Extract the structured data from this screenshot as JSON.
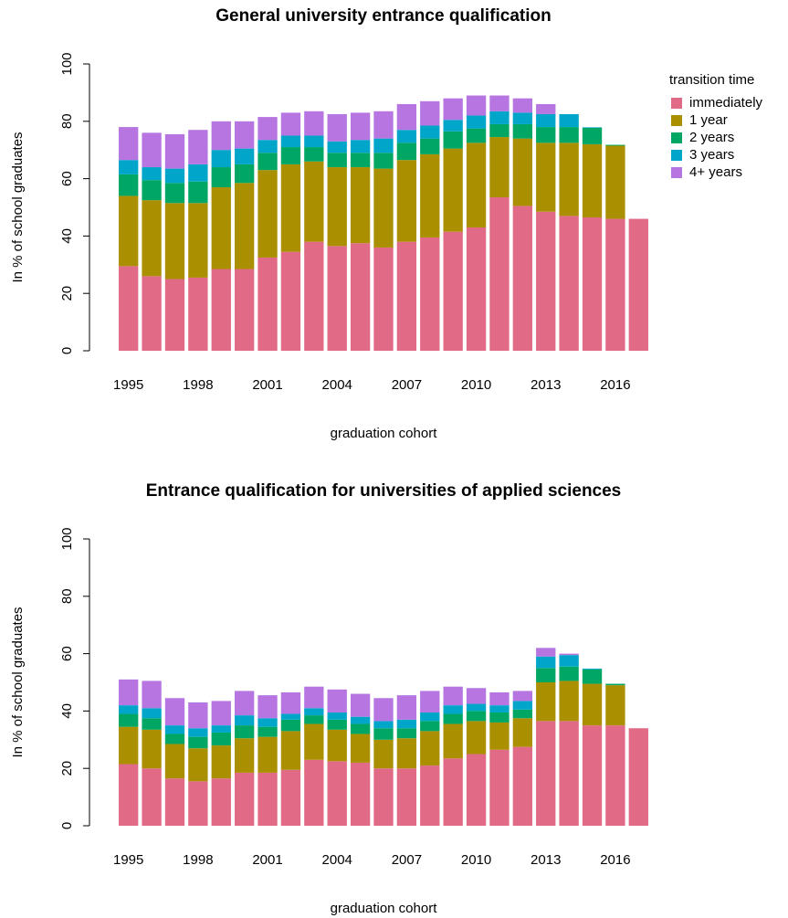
{
  "chart_data": [
    {
      "type": "bar",
      "stacked": true,
      "title": "General university entrance qualification",
      "xlabel": "graduation cohort",
      "ylabel": "In % of school graduates",
      "categories": [
        "1995",
        null,
        null,
        "1998",
        null,
        null,
        "2001",
        null,
        null,
        "2004",
        null,
        null,
        "2007",
        null,
        null,
        "2010",
        null,
        null,
        "2013",
        null,
        null,
        "2016",
        null
      ],
      "series": [
        {
          "name": "immediately",
          "color": "#e16a86",
          "values": [
            29.5,
            26,
            25,
            25.5,
            28.5,
            28.5,
            32.5,
            34.5,
            38,
            36.5,
            37.5,
            36,
            38,
            39.5,
            41.5,
            43,
            53.5,
            50.5,
            48.5,
            47,
            46.5,
            46,
            46
          ]
        },
        {
          "name": "1 year",
          "color": "#aa9000",
          "values": [
            24.5,
            26.5,
            26.5,
            26,
            28.5,
            30,
            30.5,
            30.5,
            28,
            27.5,
            26.5,
            27.5,
            28.5,
            29,
            29,
            29.5,
            21,
            23.5,
            24,
            25.5,
            25.5,
            25.5,
            null
          ]
        },
        {
          "name": "2 years",
          "color": "#00a664",
          "values": [
            7.5,
            7,
            7,
            7.5,
            7,
            6.5,
            6,
            6,
            5,
            5,
            5,
            5.5,
            6,
            5.5,
            6,
            5,
            4.5,
            5,
            5.5,
            5.5,
            5.7,
            0.3,
            null
          ]
        },
        {
          "name": "3 years",
          "color": "#00a6ca",
          "values": [
            5,
            4.5,
            5,
            6,
            6,
            5.5,
            4.5,
            4,
            4,
            4,
            4.5,
            5,
            4.5,
            4.5,
            4,
            4.5,
            4.5,
            4,
            4.5,
            4.5,
            0.2,
            null,
            null
          ]
        },
        {
          "name": "4+ years",
          "color": "#b675e0",
          "values": [
            11.5,
            12,
            12,
            12,
            10,
            9.5,
            8,
            8,
            8.5,
            9.5,
            9.5,
            9.5,
            9,
            8.5,
            7.5,
            7,
            5.5,
            5,
            3.5,
            null,
            null,
            null,
            null
          ]
        }
      ],
      "ylim": [
        0,
        100
      ],
      "yticks": [
        0,
        20,
        40,
        60,
        80,
        100
      ],
      "legend": "right",
      "legend_title": "transition time"
    },
    {
      "type": "bar",
      "stacked": true,
      "title": "Entrance qualification for universities of applied sciences",
      "xlabel": "graduation cohort",
      "ylabel": "In % of school graduates",
      "categories": [
        "1995",
        null,
        null,
        "1998",
        null,
        null,
        "2001",
        null,
        null,
        "2004",
        null,
        null,
        "2007",
        null,
        null,
        "2010",
        null,
        null,
        "2013",
        null,
        null,
        "2016",
        null
      ],
      "series": [
        {
          "color": "#e16a86",
          "values": [
            21.5,
            20,
            16.5,
            15.5,
            16.5,
            18.5,
            18.5,
            19.5,
            23,
            22.5,
            22,
            20,
            20,
            21,
            23.5,
            25,
            26.5,
            27.5,
            36.5,
            36.5,
            35,
            35,
            34
          ]
        },
        {
          "color": "#aa9000",
          "values": [
            13,
            13.5,
            12,
            11.5,
            11.5,
            12,
            12.5,
            13.5,
            12.5,
            11,
            10,
            10,
            10.5,
            12,
            12,
            11.5,
            9.5,
            10,
            13.5,
            14,
            14.5,
            14,
            null
          ]
        },
        {
          "color": "#00a664",
          "values": [
            4.5,
            4,
            3.5,
            4,
            4.5,
            4.5,
            3.5,
            4,
            3,
            3.5,
            3.5,
            4,
            3.5,
            3.5,
            3.5,
            3.5,
            3.5,
            3,
            5,
            5,
            5,
            0.5,
            null
          ]
        },
        {
          "color": "#00a6ca",
          "values": [
            3,
            3.5,
            3,
            3,
            2.5,
            3.5,
            3,
            2,
            2.5,
            2.5,
            2.5,
            2.5,
            3,
            3,
            3,
            2.5,
            2.5,
            3,
            4,
            4,
            0.3,
            null,
            null
          ]
        },
        {
          "color": "#b675e0",
          "values": [
            9,
            9.5,
            9.5,
            9,
            8.5,
            8.5,
            8,
            7.5,
            7.5,
            8,
            8,
            8,
            8.5,
            7.5,
            6.5,
            5.5,
            4.5,
            3.5,
            3,
            0.5,
            null,
            null,
            null
          ]
        }
      ],
      "ylim": [
        0,
        100
      ],
      "yticks": [
        0,
        20,
        40,
        60,
        80,
        100
      ]
    }
  ]
}
